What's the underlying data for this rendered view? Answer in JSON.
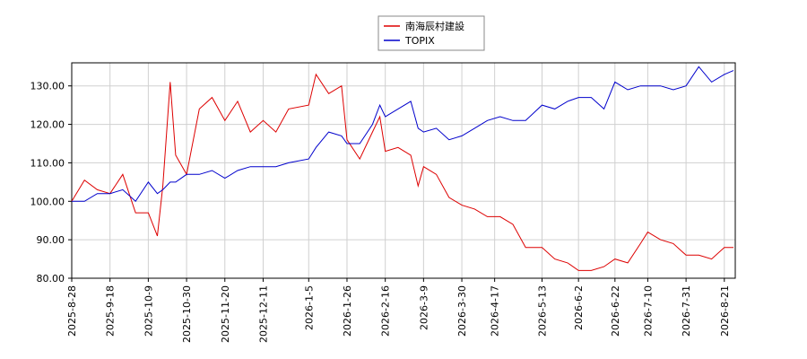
{
  "chart_data": {
    "type": "line",
    "x": [
      "2025-8-28",
      "2025-9-4",
      "2025-9-11",
      "2025-9-18",
      "2025-9-25",
      "2025-10-2",
      "2025-10-9",
      "2025-10-14",
      "2025-10-17",
      "2025-10-21",
      "2025-10-24",
      "2025-10-30",
      "2025-11-6",
      "2025-11-13",
      "2025-11-20",
      "2025-11-27",
      "2025-12-4",
      "2025-12-11",
      "2025-12-18",
      "2025-12-25",
      "2026-1-5",
      "2026-1-9",
      "2026-1-16",
      "2026-1-23",
      "2026-1-26",
      "2026-2-2",
      "2026-2-9",
      "2026-2-13",
      "2026-2-16",
      "2026-2-23",
      "2026-3-2",
      "2026-3-6",
      "2026-3-9",
      "2026-3-16",
      "2026-3-23",
      "2026-3-30",
      "2026-4-6",
      "2026-4-13",
      "2026-4-20",
      "2026-4-27",
      "2026-5-4",
      "2026-5-13",
      "2026-5-20",
      "2026-5-27",
      "2026-6-2",
      "2026-6-9",
      "2026-6-16",
      "2026-6-22",
      "2026-6-29",
      "2026-7-6",
      "2026-7-10",
      "2026-7-17",
      "2026-7-24",
      "2026-7-31",
      "2026-8-7",
      "2026-8-14",
      "2026-8-21",
      "2026-8-26"
    ],
    "series": [
      {
        "name": "南海辰村建設",
        "color": "#dd0000",
        "values": [
          100,
          105.5,
          103,
          102,
          107,
          97,
          97,
          91,
          104,
          131,
          112,
          107,
          124,
          127,
          121,
          126,
          118,
          121,
          118,
          124,
          125,
          133,
          128,
          130,
          116,
          111,
          118,
          122,
          113,
          114,
          112,
          104,
          109,
          107,
          101,
          99,
          98,
          96,
          96,
          94,
          88,
          88,
          85,
          84,
          82,
          82,
          83,
          85,
          84,
          89,
          92,
          90,
          89,
          86,
          86,
          85,
          88,
          88
        ]
      },
      {
        "name": "TOPIX",
        "color": "#0000cc",
        "values": [
          100,
          100,
          102,
          102,
          103,
          100,
          105,
          102,
          103,
          105,
          105,
          107,
          107,
          108,
          106,
          108,
          109,
          109,
          109,
          110,
          111,
          114,
          118,
          117,
          115,
          115,
          120,
          125,
          122,
          124,
          126,
          119,
          118,
          119,
          116,
          117,
          119,
          121,
          122,
          121,
          121,
          125,
          124,
          126,
          127,
          127,
          124,
          131,
          129,
          130,
          130,
          130,
          129,
          130,
          135,
          131,
          133,
          134
        ]
      }
    ],
    "xlim": [
      "2025-8-28",
      "2026-8-27"
    ],
    "xticks": [
      "2025-8-28",
      "2025-9-18",
      "2025-10-9",
      "2025-10-30",
      "2025-11-20",
      "2025-12-11",
      "2026-1-5",
      "2026-1-26",
      "2026-2-16",
      "2026-3-9",
      "2026-3-30",
      "2026-4-17",
      "2026-5-13",
      "2026-6-2",
      "2026-6-22",
      "2026-7-10",
      "2026-7-31",
      "2026-8-21"
    ],
    "ylim": [
      80,
      136
    ],
    "yticks": [
      {
        "value": 80,
        "label": "80.00"
      },
      {
        "value": 90,
        "label": "90.00"
      },
      {
        "value": 100,
        "label": "100.00"
      },
      {
        "value": 110,
        "label": "110.00"
      },
      {
        "value": 120,
        "label": "120.00"
      },
      {
        "value": 130,
        "label": "130.00"
      }
    ],
    "grid": true,
    "legend": "top"
  }
}
